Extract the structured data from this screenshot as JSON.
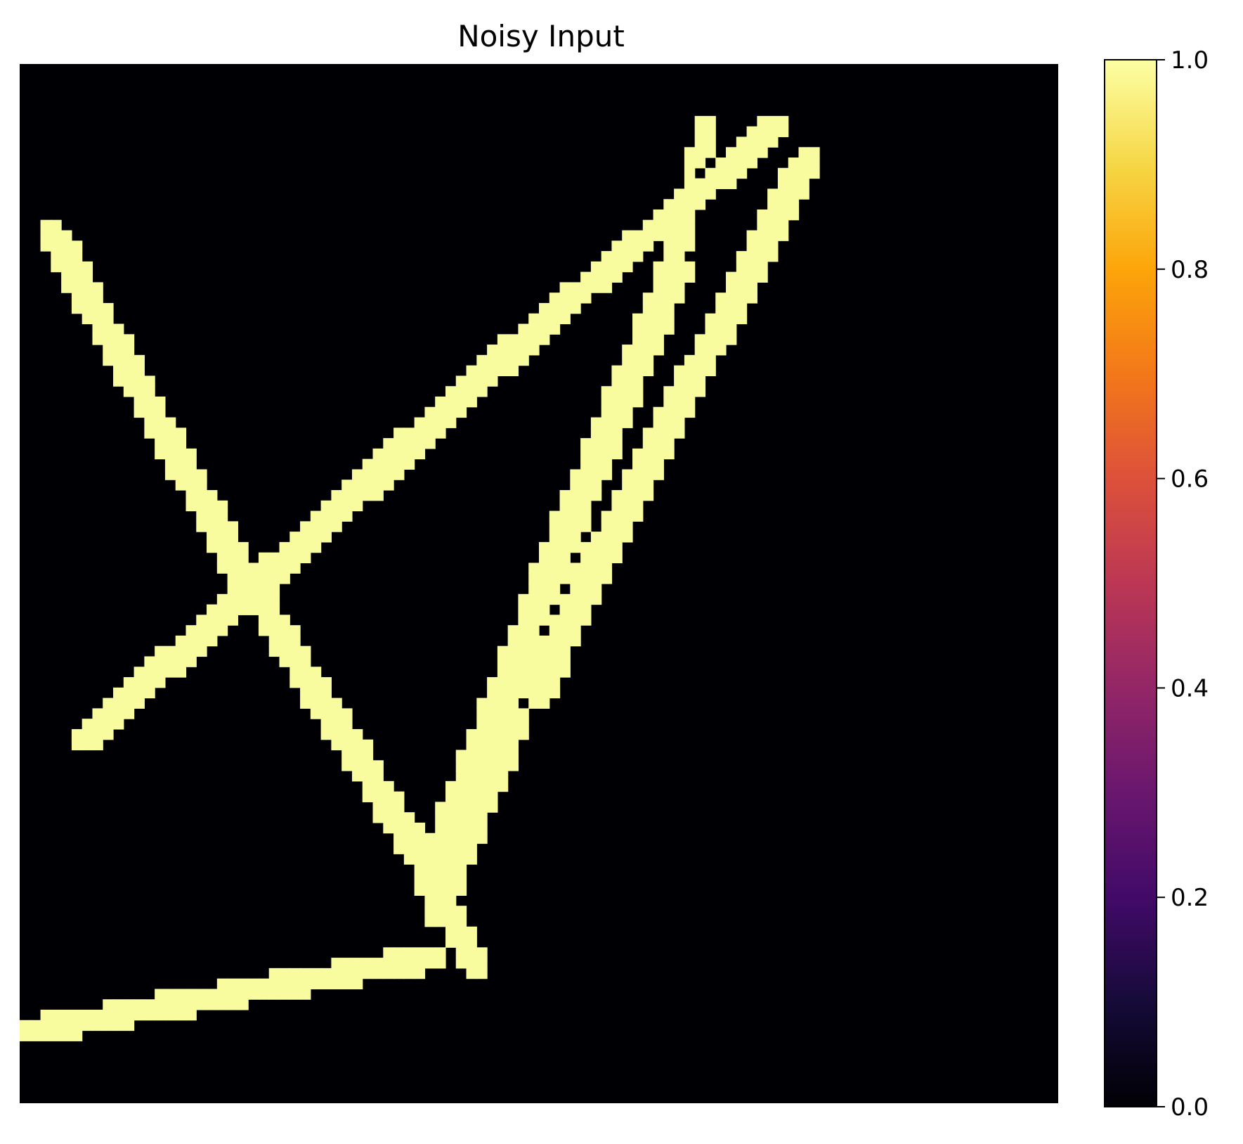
{
  "chart_data": {
    "type": "heatmap",
    "title": "Noisy Input",
    "xlabel": "",
    "ylabel": "",
    "axes_visible": false,
    "grid": false,
    "colormap": "inferno",
    "colors": {
      "low": "#000004",
      "high": "#fcffa4",
      "background": "#000004",
      "stroke": "#f8fb9e"
    },
    "value_range": [
      0,
      1
    ],
    "binary_values": [
      0,
      1
    ],
    "colorbar": {
      "position": "right",
      "ticks": [
        "0.0",
        "0.2",
        "0.4",
        "0.6",
        "0.8",
        "1.0"
      ],
      "tick_values": [
        0.0,
        0.2,
        0.4,
        0.6,
        0.8,
        1.0
      ]
    },
    "grid_size": [
      100,
      100
    ],
    "strokes_value": 1,
    "strokes": [
      {
        "from": [
          3,
          16
        ],
        "to": [
          22,
          50
        ],
        "width": 2.3
      },
      {
        "from": [
          22,
          50
        ],
        "to": [
          39,
          77
        ],
        "width": 2.3
      },
      {
        "from": [
          39,
          77
        ],
        "to": [
          44,
          87
        ],
        "width": 1.8
      },
      {
        "from": [
          6,
          65
        ],
        "to": [
          23,
          50
        ],
        "width": 2.2
      },
      {
        "from": [
          23,
          50
        ],
        "to": [
          48,
          27
        ],
        "width": 2.4
      },
      {
        "from": [
          48,
          27
        ],
        "to": [
          73,
          6
        ],
        "width": 2.0
      },
      {
        "from": [
          66,
          6
        ],
        "to": [
          63,
          20
        ],
        "width": 1.6
      },
      {
        "from": [
          63,
          20
        ],
        "to": [
          51,
          49
        ],
        "width": 2.6
      },
      {
        "from": [
          51,
          49
        ],
        "to": [
          39,
          79
        ],
        "width": 2.4
      },
      {
        "from": [
          76,
          9
        ],
        "to": [
          56,
          47
        ],
        "width": 2.4
      },
      {
        "from": [
          56,
          47
        ],
        "to": [
          50,
          60
        ],
        "width": 2.6
      },
      {
        "from": [
          48,
          63
        ],
        "to": [
          40,
          82
        ],
        "width": 2.0
      },
      {
        "from": [
          1,
          93
        ],
        "to": [
          40,
          86
        ],
        "width": 1.9
      }
    ],
    "holes": [
      [
        44,
        84
      ],
      [
        22,
        53
      ],
      [
        56,
        40
      ],
      [
        65,
        10
      ],
      [
        58,
        21
      ]
    ]
  }
}
